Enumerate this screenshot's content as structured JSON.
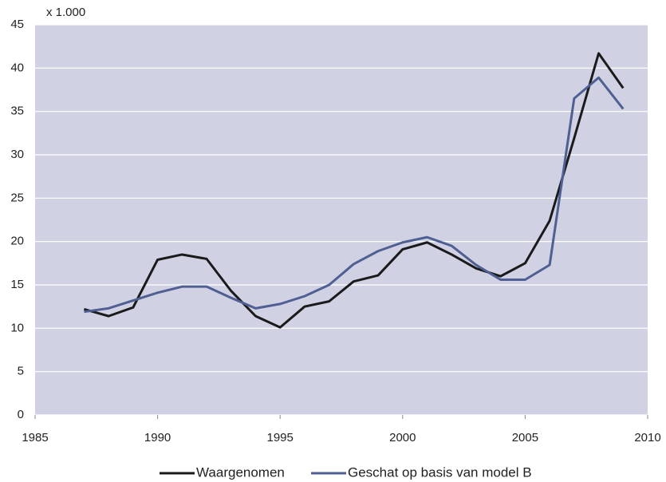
{
  "chart_data": {
    "type": "line",
    "ylabel": "x 1.000",
    "x": [
      1987,
      1988,
      1989,
      1990,
      1991,
      1992,
      1993,
      1994,
      1995,
      1996,
      1997,
      1998,
      1999,
      2000,
      2001,
      2002,
      2003,
      2004,
      2005,
      2006,
      2007,
      2008,
      2009
    ],
    "series": [
      {
        "name": "Waargenomen",
        "color": "#1a1a1a",
        "values": [
          12.2,
          11.4,
          12.4,
          17.9,
          18.5,
          18.0,
          14.3,
          11.4,
          10.1,
          12.5,
          13.1,
          15.4,
          16.1,
          19.1,
          19.9,
          18.5,
          16.9,
          16.0,
          17.5,
          22.4,
          31.9,
          41.7,
          37.7
        ]
      },
      {
        "name": "Geschat op basis van model B",
        "color": "#4f5f92",
        "values": [
          11.9,
          12.3,
          13.2,
          14.1,
          14.8,
          14.8,
          13.5,
          12.3,
          12.8,
          13.7,
          15.0,
          17.4,
          18.9,
          19.9,
          20.5,
          19.5,
          17.3,
          15.6,
          15.6,
          17.3,
          36.5,
          38.9,
          35.3
        ]
      }
    ],
    "xlim": [
      1985,
      2010
    ],
    "xticks": [
      1985,
      1990,
      1995,
      2000,
      2005,
      2010
    ],
    "ylim": [
      0,
      45
    ],
    "yticks": [
      0,
      5,
      10,
      15,
      20,
      25,
      30,
      35,
      40,
      45
    ],
    "grid": true,
    "legend": "bottom",
    "plot_background": "#d0d2e4"
  }
}
